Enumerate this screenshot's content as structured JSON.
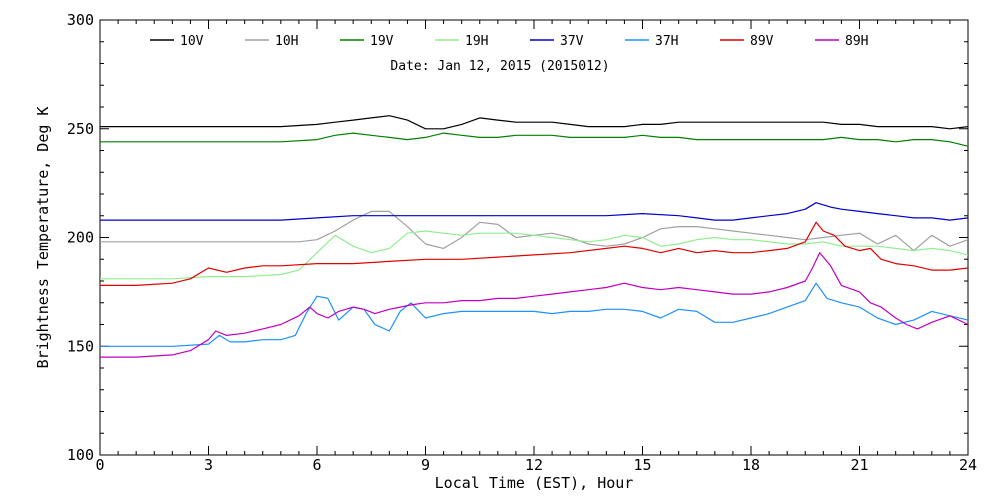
{
  "chart_data": {
    "type": "line",
    "title": "",
    "subtitle": "Date: Jan 12, 2015 (2015012)",
    "xlabel": "Local Time (EST), Hour",
    "ylabel": "Brightness Temperature, Deg K",
    "xlim": [
      0,
      24
    ],
    "ylim": [
      100,
      300
    ],
    "x_ticks": [
      0,
      3,
      6,
      9,
      12,
      15,
      18,
      21,
      24
    ],
    "y_ticks": [
      100,
      150,
      200,
      250,
      300
    ],
    "grid": false,
    "legend_position": "top",
    "series": [
      {
        "name": "10V",
        "color": "#000000",
        "x": [
          0,
          1,
          2,
          3,
          4,
          5,
          6,
          6.5,
          7,
          7.5,
          8,
          8.5,
          9,
          9.5,
          10,
          10.5,
          11,
          11.5,
          12,
          12.5,
          13,
          13.5,
          14,
          14.5,
          15,
          15.5,
          16,
          16.5,
          17,
          17.5,
          18,
          18.5,
          19,
          19.5,
          20,
          20.5,
          21,
          21.5,
          22,
          22.5,
          23,
          23.5,
          24
        ],
        "y": [
          251,
          251,
          251,
          251,
          251,
          251,
          252,
          253,
          254,
          255,
          256,
          254,
          250,
          250,
          252,
          255,
          254,
          253,
          253,
          253,
          252,
          251,
          251,
          251,
          252,
          252,
          253,
          253,
          253,
          253,
          253,
          253,
          253,
          253,
          253,
          252,
          252,
          251,
          251,
          251,
          251,
          250,
          251
        ]
      },
      {
        "name": "10H",
        "color": "#a0a0a0",
        "x": [
          0,
          1,
          2,
          3,
          4,
          5,
          5.5,
          6,
          6.5,
          7,
          7.5,
          8,
          8.5,
          9,
          9.5,
          10,
          10.5,
          11,
          11.5,
          12,
          12.5,
          13,
          13.5,
          14,
          14.5,
          15,
          15.5,
          16,
          16.5,
          17,
          17.5,
          18,
          18.5,
          19,
          19.5,
          20,
          20.5,
          21,
          21.5,
          22,
          22.5,
          23,
          23.5,
          24
        ],
        "y": [
          198,
          198,
          198,
          198,
          198,
          198,
          198,
          199,
          203,
          208,
          212,
          212,
          205,
          197,
          195,
          200,
          207,
          206,
          200,
          201,
          202,
          200,
          197,
          196,
          197,
          200,
          204,
          205,
          205,
          204,
          203,
          202,
          201,
          200,
          199,
          200,
          201,
          202,
          197,
          201,
          194,
          201,
          196,
          199
        ]
      },
      {
        "name": "19V",
        "color": "#008000",
        "x": [
          0,
          1,
          2,
          3,
          4,
          5,
          6,
          6.5,
          7,
          7.5,
          8,
          8.5,
          9,
          9.5,
          10,
          10.5,
          11,
          11.5,
          12,
          12.5,
          13,
          13.5,
          14,
          14.5,
          15,
          15.5,
          16,
          16.5,
          17,
          17.5,
          18,
          18.5,
          19,
          19.5,
          20,
          20.5,
          21,
          21.5,
          22,
          22.5,
          23,
          23.5,
          24
        ],
        "y": [
          244,
          244,
          244,
          244,
          244,
          244,
          245,
          247,
          248,
          247,
          246,
          245,
          246,
          248,
          247,
          246,
          246,
          247,
          247,
          247,
          246,
          246,
          246,
          246,
          247,
          246,
          246,
          245,
          245,
          245,
          245,
          245,
          245,
          245,
          245,
          246,
          245,
          245,
          244,
          245,
          245,
          244,
          242
        ]
      },
      {
        "name": "19H",
        "color": "#90ee90",
        "x": [
          0,
          1,
          2,
          3,
          4,
          5,
          5.5,
          6,
          6.5,
          7,
          7.5,
          8,
          8.5,
          9,
          9.5,
          10,
          10.5,
          11,
          11.5,
          12,
          12.5,
          13,
          13.5,
          14,
          14.5,
          15,
          15.5,
          16,
          16.5,
          17,
          17.5,
          18,
          18.5,
          19,
          19.5,
          20,
          20.5,
          21,
          21.5,
          22,
          22.5,
          23,
          23.5,
          24
        ],
        "y": [
          181,
          181,
          181,
          182,
          182,
          183,
          185,
          193,
          201,
          196,
          193,
          195,
          202,
          203,
          202,
          201,
          202,
          202,
          202,
          201,
          200,
          199,
          198,
          199,
          201,
          200,
          196,
          197,
          199,
          200,
          199,
          199,
          198,
          197,
          197,
          198,
          196,
          196,
          196,
          195,
          194,
          195,
          194,
          192
        ]
      },
      {
        "name": "37V",
        "color": "#0000cc",
        "x": [
          0,
          1,
          2,
          3,
          4,
          5,
          6,
          7,
          8,
          9,
          10,
          11,
          12,
          13,
          14,
          15,
          16,
          16.5,
          17,
          17.5,
          18,
          18.5,
          19,
          19.5,
          19.8,
          20.2,
          20.5,
          21,
          21.5,
          22,
          22.5,
          23,
          23.5,
          24
        ],
        "y": [
          208,
          208,
          208,
          208,
          208,
          208,
          209,
          210,
          210,
          210,
          210,
          210,
          210,
          210,
          210,
          211,
          210,
          209,
          208,
          208,
          209,
          210,
          211,
          213,
          216,
          214,
          213,
          212,
          211,
          210,
          209,
          209,
          208,
          209
        ]
      },
      {
        "name": "37H",
        "color": "#1e90ff",
        "x": [
          0,
          1,
          2,
          3,
          3.3,
          3.6,
          4,
          4.5,
          5,
          5.4,
          5.7,
          6,
          6.3,
          6.6,
          7,
          7.3,
          7.6,
          8,
          8.3,
          8.6,
          9,
          9.5,
          10,
          10.5,
          11,
          11.5,
          12,
          12.5,
          13,
          13.5,
          14,
          14.5,
          15,
          15.5,
          16,
          16.5,
          17,
          17.5,
          18,
          18.5,
          19,
          19.5,
          19.8,
          20.1,
          20.5,
          21,
          21.5,
          22,
          22.5,
          23,
          23.5,
          24
        ],
        "y": [
          150,
          150,
          150,
          151,
          155,
          152,
          152,
          153,
          153,
          155,
          165,
          173,
          172,
          162,
          168,
          167,
          160,
          157,
          166,
          170,
          163,
          165,
          166,
          166,
          166,
          166,
          166,
          165,
          166,
          166,
          167,
          167,
          166,
          163,
          167,
          166,
          161,
          161,
          163,
          165,
          168,
          171,
          179,
          172,
          170,
          168,
          163,
          160,
          162,
          166,
          164,
          162
        ]
      },
      {
        "name": "89V",
        "color": "#e00000",
        "x": [
          0,
          1,
          2,
          2.5,
          3,
          3.5,
          4,
          4.5,
          5,
          6,
          7,
          8,
          9,
          10,
          11,
          12,
          13,
          14,
          14.5,
          15,
          15.5,
          16,
          16.5,
          17,
          17.5,
          18,
          18.5,
          19,
          19.5,
          19.8,
          20,
          20.3,
          20.6,
          21,
          21.3,
          21.6,
          22,
          22.5,
          23,
          23.5,
          24
        ],
        "y": [
          178,
          178,
          179,
          181,
          186,
          184,
          186,
          187,
          187,
          188,
          188,
          189,
          190,
          190,
          191,
          192,
          193,
          195,
          196,
          195,
          193,
          195,
          193,
          194,
          193,
          193,
          194,
          195,
          198,
          207,
          203,
          201,
          196,
          194,
          195,
          190,
          188,
          187,
          185,
          185,
          186
        ]
      },
      {
        "name": "89H",
        "color": "#c000c0",
        "x": [
          0,
          1,
          2,
          2.5,
          3,
          3.2,
          3.5,
          4,
          4.5,
          5,
          5.5,
          5.8,
          6,
          6.3,
          6.6,
          7,
          7.3,
          7.6,
          8,
          8.3,
          8.6,
          9,
          9.5,
          10,
          10.5,
          11,
          11.5,
          12,
          12.5,
          13,
          13.5,
          14,
          14.5,
          15,
          15.5,
          16,
          16.5,
          17,
          17.5,
          18,
          18.5,
          19,
          19.5,
          19.7,
          19.9,
          20.2,
          20.5,
          21,
          21.3,
          21.6,
          22,
          22.3,
          22.6,
          23,
          23.5,
          24
        ],
        "y": [
          145,
          145,
          146,
          148,
          153,
          157,
          155,
          156,
          158,
          160,
          164,
          168,
          165,
          163,
          166,
          168,
          167,
          165,
          167,
          168,
          169,
          170,
          170,
          171,
          171,
          172,
          172,
          173,
          174,
          175,
          176,
          177,
          179,
          177,
          176,
          177,
          176,
          175,
          174,
          174,
          175,
          177,
          180,
          186,
          193,
          187,
          178,
          175,
          170,
          168,
          163,
          160,
          158,
          161,
          164,
          160
        ]
      }
    ]
  }
}
